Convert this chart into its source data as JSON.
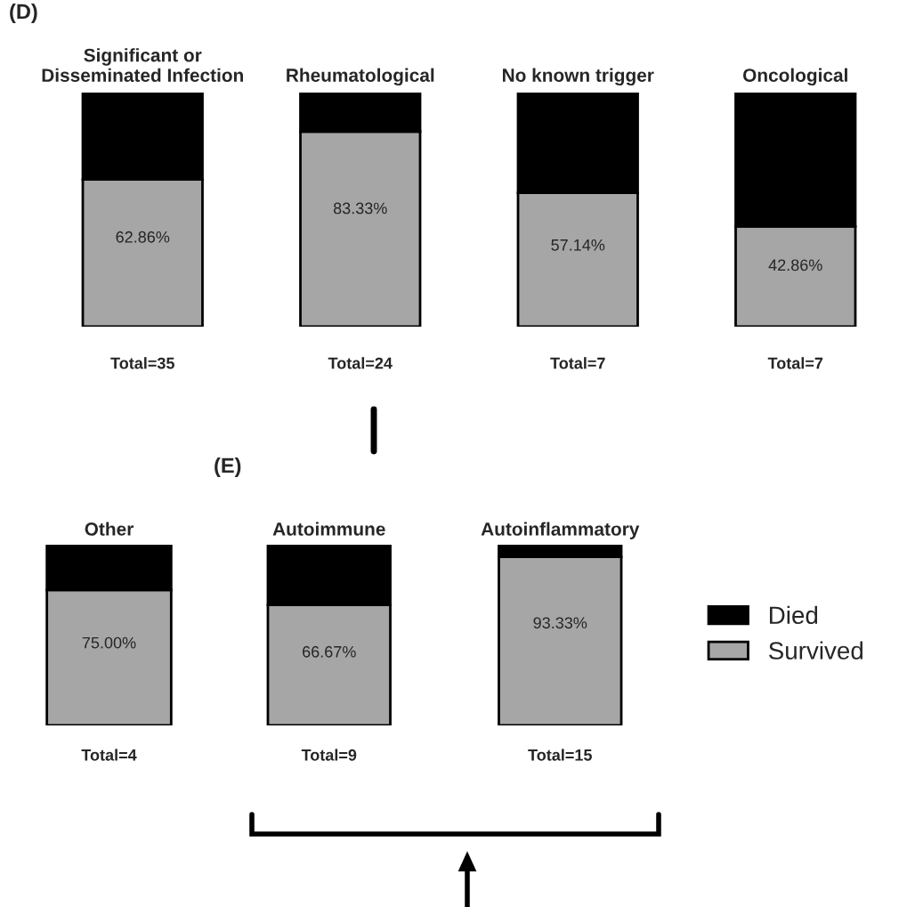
{
  "chart_data": [
    {
      "type": "bar",
      "title": "(D)",
      "stacked": true,
      "categories": [
        "Significant or\nDisseminated Infection",
        "Rheumatological",
        "No known trigger",
        "Oncological"
      ],
      "series": [
        {
          "color": "#a6a6a6",
          "values": [
            62.86,
            83.33,
            57.14,
            42.86
          ],
          "value_labels": [
            "62.86%",
            "83.33%",
            "57.14%",
            "42.86%"
          ]
        },
        {
          "color": "#000000",
          "values": [
            37.14,
            16.67,
            42.86,
            57.14
          ]
        }
      ],
      "annotations": [
        "Total=35",
        "Total=24",
        "Total=7",
        "Total=7"
      ]
    },
    {
      "type": "bar",
      "stacked": true,
      "categories": [
        "Other"
      ],
      "series": [
        {
          "color": "#a6a6a6",
          "values": [
            75.0
          ],
          "value_labels": [
            "75.00%"
          ]
        },
        {
          "color": "#000000",
          "values": [
            25.0
          ]
        }
      ],
      "annotations": [
        "Total=4"
      ]
    },
    {
      "type": "bar",
      "title": "(E)",
      "stacked": true,
      "legend": "right",
      "categories": [
        "Autoimmune",
        "Autoinflammatory"
      ],
      "series": [
        {
          "name": "Survived",
          "color": "#a6a6a6",
          "values": [
            66.67,
            93.33
          ],
          "value_labels": [
            "66.67%",
            "93.33%"
          ]
        },
        {
          "name": "Died",
          "color": "#000000",
          "values": [
            33.33,
            6.67
          ]
        }
      ],
      "annotations": [
        "Total=9",
        "Total=15"
      ]
    }
  ]
}
